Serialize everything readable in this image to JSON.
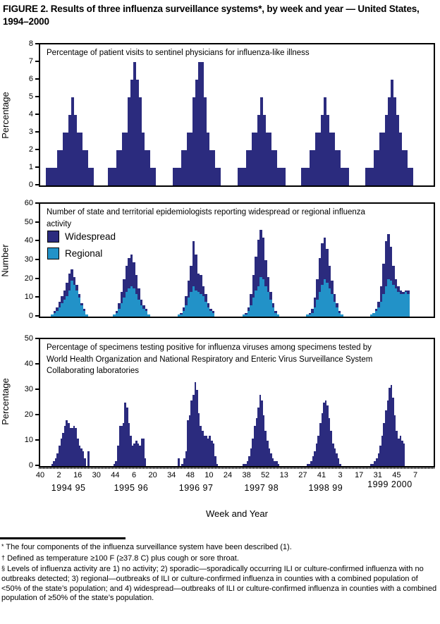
{
  "title": "FIGURE 2. Results of three influenza surveillance systems*, by week and year — United States, 1994–2000",
  "colors": {
    "widespread_navy": "#2b2b7e",
    "regional_blue": "#2292c8",
    "axis_black": "#000000"
  },
  "xaxis": {
    "label": "Week and Year",
    "week_ticks": [
      40,
      2,
      16,
      30,
      44,
      6,
      20,
      34,
      48,
      10,
      24,
      38,
      52,
      13,
      27,
      41,
      3,
      17,
      31,
      45,
      7
    ],
    "year_labels": [
      "1994 95",
      "1995 96",
      "1996 97",
      "1997 98",
      "1998 99",
      "1999 2000"
    ]
  },
  "chart_data": [
    {
      "type": "bar",
      "title": "Percentage of patient visits to sentinel physicians for influenza-like illness",
      "ylabel": "Percentage",
      "ylim": [
        0,
        8
      ],
      "yticks": [
        0,
        1,
        2,
        3,
        4,
        5,
        6,
        7,
        8
      ],
      "grid": false,
      "color": "#2b2b7e",
      "x_unit": "week",
      "seasons": [
        {
          "year": "1994 95",
          "values": [
            1,
            1,
            1,
            1,
            2,
            2,
            3,
            3,
            4,
            5,
            4,
            3,
            3,
            2,
            2,
            1,
            1
          ]
        },
        {
          "year": "1995 96",
          "values": [
            1,
            1,
            1,
            2,
            2,
            3,
            3,
            5,
            6,
            7,
            6,
            5,
            3,
            2,
            2,
            1,
            1
          ]
        },
        {
          "year": "1996 97",
          "values": [
            1,
            1,
            1,
            2,
            2,
            3,
            3,
            5,
            6,
            7,
            7,
            5,
            3,
            2,
            2,
            1,
            1
          ]
        },
        {
          "year": "1997 98",
          "values": [
            1,
            1,
            1,
            2,
            2,
            3,
            3,
            4,
            5,
            4,
            3,
            3,
            2,
            2,
            1,
            1,
            1
          ]
        },
        {
          "year": "1998 99",
          "values": [
            1,
            1,
            1,
            2,
            2,
            3,
            3,
            4,
            5,
            4,
            3,
            3,
            2,
            2,
            1,
            1,
            1
          ]
        },
        {
          "year": "1999 2000",
          "values": [
            1,
            1,
            1,
            2,
            2,
            3,
            3,
            4,
            5,
            6,
            5,
            4,
            3,
            2,
            2,
            1,
            1
          ]
        }
      ]
    },
    {
      "type": "bar",
      "stacked": true,
      "title": "Number of state and territorial epidemiologists reporting widespread or regional influenza activity",
      "ylabel": "Number",
      "ylim": [
        0,
        60
      ],
      "yticks": [
        0,
        10,
        20,
        30,
        40,
        50,
        60
      ],
      "grid": false,
      "legend_position": "top-left",
      "legend": [
        {
          "label": "Widespread",
          "color": "#2b2b7e"
        },
        {
          "label": "Regional",
          "color": "#2292c8"
        }
      ],
      "x_unit": "week",
      "seasons": [
        {
          "year": "1994 95",
          "regional": [
            1,
            2,
            3,
            5,
            7,
            9,
            11,
            14,
            19,
            17,
            14,
            10,
            6,
            3,
            1
          ],
          "widespread": [
            0,
            1,
            2,
            3,
            4,
            5,
            7,
            9,
            6,
            4,
            3,
            2,
            1,
            1,
            0
          ]
        },
        {
          "year": "1995 96",
          "regional": [
            1,
            2,
            4,
            7,
            10,
            13,
            15,
            16,
            15,
            12,
            9,
            6,
            4,
            3,
            1
          ],
          "widespread": [
            0,
            1,
            3,
            6,
            10,
            14,
            16,
            17,
            14,
            10,
            6,
            3,
            2,
            1,
            0
          ]
        },
        {
          "year": "1996 97",
          "regional": [
            1,
            1,
            3,
            6,
            10,
            13,
            16,
            14,
            13,
            12,
            11,
            8,
            5,
            3,
            2
          ],
          "widespread": [
            0,
            1,
            2,
            5,
            9,
            14,
            24,
            19,
            10,
            10,
            5,
            4,
            2,
            1,
            1
          ]
        },
        {
          "year": "1997 98",
          "regional": [
            1,
            1,
            3,
            6,
            10,
            14,
            16,
            21,
            20,
            16,
            13,
            9,
            5,
            2,
            1
          ],
          "widespread": [
            0,
            1,
            2,
            6,
            12,
            18,
            25,
            25,
            22,
            14,
            8,
            4,
            2,
            1,
            0
          ]
        },
        {
          "year": "1998 99",
          "regional": [
            1,
            1,
            2,
            5,
            9,
            13,
            17,
            20,
            18,
            15,
            12,
            8,
            5,
            2,
            1
          ],
          "widespread": [
            0,
            1,
            2,
            5,
            11,
            18,
            22,
            22,
            18,
            12,
            7,
            4,
            2,
            1,
            0
          ]
        },
        {
          "year": "1999 2000",
          "regional": [
            1,
            2,
            3,
            5,
            8,
            12,
            16,
            20,
            19,
            17,
            15,
            13,
            12,
            12,
            13,
            12
          ],
          "widespread": [
            0,
            0,
            1,
            3,
            8,
            16,
            24,
            24,
            18,
            10,
            5,
            3,
            2,
            1,
            1,
            2
          ]
        }
      ]
    },
    {
      "type": "bar",
      "title": "Percentage of specimens testing positive for influenza viruses among specimens tested by World Health Organization and National Respiratory and Enteric Virus Surveillance System Collaborating laboratories",
      "ylabel": "Percentage",
      "ylim": [
        0,
        50
      ],
      "yticks": [
        0,
        10,
        20,
        30,
        40,
        50
      ],
      "grid": false,
      "color": "#2b2b7e",
      "x_unit": "week",
      "seasons": [
        {
          "year": "1994 95",
          "values": [
            1,
            2,
            3,
            5,
            8,
            11,
            13,
            16,
            18,
            17,
            15,
            15,
            16,
            15,
            11,
            8,
            7,
            6,
            3,
            0,
            6
          ]
        },
        {
          "year": "1995 96",
          "values": [
            1,
            2,
            8,
            16,
            16,
            17,
            25,
            23,
            17,
            12,
            8,
            9,
            10,
            9,
            8,
            11,
            11,
            3
          ]
        },
        {
          "year": "1996 97",
          "values": [
            3,
            0,
            1,
            3,
            6,
            18,
            20,
            26,
            28,
            33,
            30,
            21,
            16,
            14,
            12,
            12,
            11,
            12,
            10,
            9,
            4,
            1
          ]
        },
        {
          "year": "1997 98",
          "values": [
            1,
            1,
            2,
            4,
            7,
            11,
            16,
            19,
            23,
            28,
            26,
            20,
            14,
            10,
            7,
            5,
            3,
            2,
            2,
            1
          ]
        },
        {
          "year": "1998 99",
          "values": [
            1,
            1,
            2,
            4,
            6,
            9,
            12,
            17,
            21,
            25,
            26,
            24,
            19,
            14,
            9,
            7,
            5,
            3,
            1
          ]
        },
        {
          "year": "1999 2000",
          "values": [
            1,
            1,
            2,
            3,
            5,
            8,
            12,
            17,
            22,
            26,
            31,
            32,
            27,
            20,
            14,
            11,
            12,
            10,
            9
          ]
        }
      ]
    }
  ],
  "footnotes": [
    {
      "marker": "*",
      "text": "The four components of the influenza surveillance system have been described (1)."
    },
    {
      "marker": "†",
      "text": "Defined as temperature ≥100 F (≥37.8 C) plus cough or sore throat."
    },
    {
      "marker": "§",
      "text": "Levels of influenza activity are 1) no activity; 2) sporadic—sporadically occurring ILI or culture-confirmed influenza with no outbreaks detected; 3) regional—outbreaks of ILI or culture-confirmed influenza in counties with a combined population of <50% of the state’s population; and 4) widespread—outbreaks of ILI or culture-confirmed influenza in counties with a combined population of ≥50% of the state’s population."
    }
  ]
}
